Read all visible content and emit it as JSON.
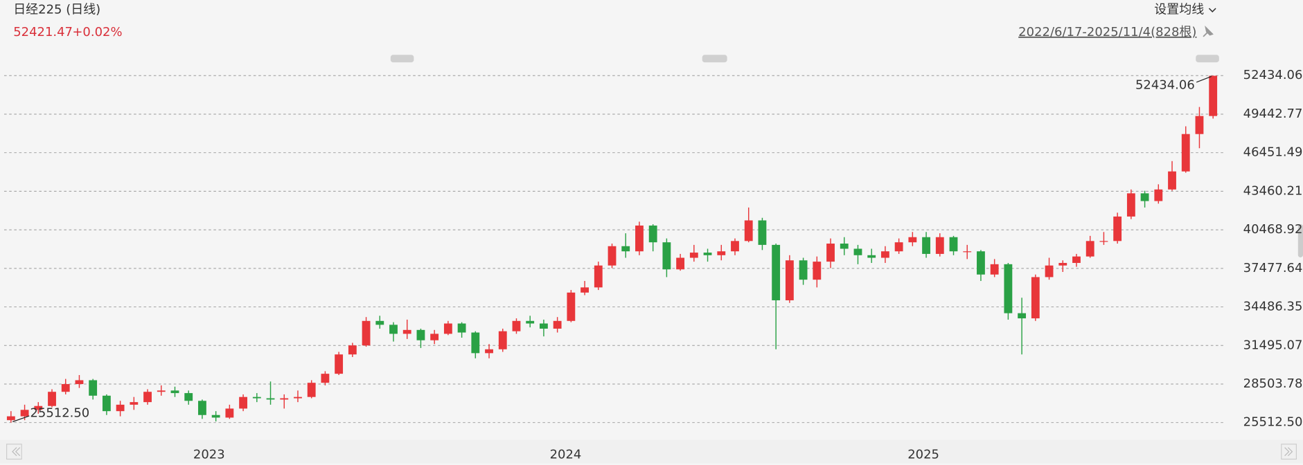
{
  "header": {
    "title": "日经225 (日线)",
    "change": {
      "value": 0.02,
      "label": "+0.02%"
    },
    "ma_button": "设置均线",
    "range": "2022/6/17-2025/11/4(828根)"
  },
  "chart_data": {
    "type": "candlestick",
    "up_color": "#e8363a",
    "down_color": "#2aa145",
    "xlim": [
      -0.5,
      88.5
    ],
    "xticks": [
      {
        "value": 14.5,
        "label": "2023"
      },
      {
        "value": 40.6,
        "label": "2024"
      },
      {
        "value": 66.8,
        "label": "2025"
      }
    ],
    "ylim": [
      24288,
      54430
    ],
    "yticks": [
      {
        "value": 25512.5,
        "label": "25512.50"
      },
      28503.78,
      31495.07,
      34486.35,
      37477.64,
      40468.92,
      43460.21,
      46451.49,
      49442.77,
      52434.06
    ],
    "grid": true,
    "open": [
      25700,
      26000,
      26500,
      26800,
      27900,
      28500,
      28800,
      27600,
      26400,
      26900,
      27100,
      27900,
      28000,
      27800,
      27200,
      26100,
      25900,
      26600,
      27500,
      27400,
      27300,
      27400,
      27500,
      28600,
      29300,
      30800,
      31500,
      33400,
      33100,
      32400,
      32700,
      31900,
      32400,
      33200,
      32500,
      30900,
      31200,
      32600,
      33400,
      33200,
      32800,
      33400,
      35600,
      36000,
      37700,
      39200,
      38800,
      40800,
      39500,
      37400,
      38300,
      38700,
      38500,
      38800,
      39600,
      41200,
      39300,
      35000,
      38100,
      36600,
      38000,
      39400,
      39000,
      38500,
      38300,
      38800,
      39500,
      39900,
      38600,
      39900,
      38800,
      38800,
      37000,
      37800,
      34000,
      33600,
      36800,
      37700,
      37900,
      38400,
      39600,
      39600,
      41500,
      43300,
      42700,
      43600,
      45000,
      47900,
      49300
    ],
    "high": [
      26400,
      26900,
      27100,
      28100,
      28900,
      29200,
      28900,
      27700,
      27200,
      27500,
      28100,
      28400,
      28300,
      28000,
      27300,
      26400,
      26900,
      27700,
      27800,
      28700,
      27700,
      28000,
      28800,
      29500,
      31000,
      31700,
      33700,
      33800,
      33300,
      33500,
      32800,
      32700,
      33400,
      33300,
      32600,
      31600,
      32800,
      33600,
      33800,
      33500,
      33700,
      35800,
      36500,
      38000,
      39400,
      40200,
      41100,
      40900,
      39800,
      38600,
      39300,
      39000,
      39300,
      39800,
      42200,
      41400,
      39400,
      38500,
      38300,
      38400,
      39800,
      39900,
      39300,
      39000,
      39200,
      39800,
      40300,
      40300,
      40200,
      40000,
      39300,
      38900,
      38200,
      37900,
      35200,
      37000,
      38300,
      38100,
      38600,
      40000,
      40300,
      41800,
      43600,
      43500,
      44000,
      45800,
      48500,
      50000,
      52434.06
    ],
    "low": [
      25512.5,
      25700,
      26200,
      26700,
      27700,
      28200,
      27300,
      26100,
      26000,
      26500,
      26900,
      27600,
      27500,
      26900,
      25800,
      25600,
      25800,
      26400,
      27100,
      26900,
      26600,
      27100,
      27400,
      28400,
      29200,
      30600,
      31400,
      32800,
      31800,
      32000,
      31300,
      31600,
      32300,
      32100,
      30500,
      30500,
      31000,
      32400,
      32900,
      32200,
      32500,
      33300,
      35400,
      35800,
      37500,
      38300,
      38500,
      38800,
      36800,
      37300,
      38000,
      38000,
      38100,
      38500,
      39500,
      38900,
      31200,
      34800,
      36200,
      36000,
      37500,
      38500,
      37800,
      37900,
      37900,
      38600,
      39200,
      38300,
      38400,
      38500,
      38200,
      36500,
      36800,
      33500,
      30800,
      33400,
      36600,
      37200,
      37600,
      38300,
      39300,
      39400,
      41300,
      42200,
      42500,
      43500,
      44900,
      46800,
      49100
    ],
    "close": [
      26000,
      26500,
      26800,
      27900,
      28500,
      28800,
      27600,
      26400,
      26900,
      27100,
      27900,
      28000,
      27800,
      27200,
      26100,
      25900,
      26600,
      27500,
      27400,
      27300,
      27400,
      27500,
      28600,
      29300,
      30800,
      31500,
      33400,
      33100,
      32400,
      32700,
      31900,
      32400,
      33200,
      32500,
      30900,
      31200,
      32600,
      33400,
      33200,
      32800,
      33400,
      35600,
      36000,
      37700,
      39200,
      38800,
      40800,
      39500,
      37400,
      38300,
      38700,
      38500,
      38800,
      39600,
      41200,
      39300,
      35000,
      38100,
      36600,
      38000,
      39400,
      39000,
      38500,
      38300,
      38800,
      39500,
      39900,
      38600,
      39900,
      38800,
      38800,
      37000,
      37800,
      34000,
      33600,
      36800,
      37700,
      37900,
      38400,
      39600,
      39600,
      41500,
      43300,
      42700,
      43600,
      45000,
      47900,
      49300,
      52421.47
    ]
  }
}
